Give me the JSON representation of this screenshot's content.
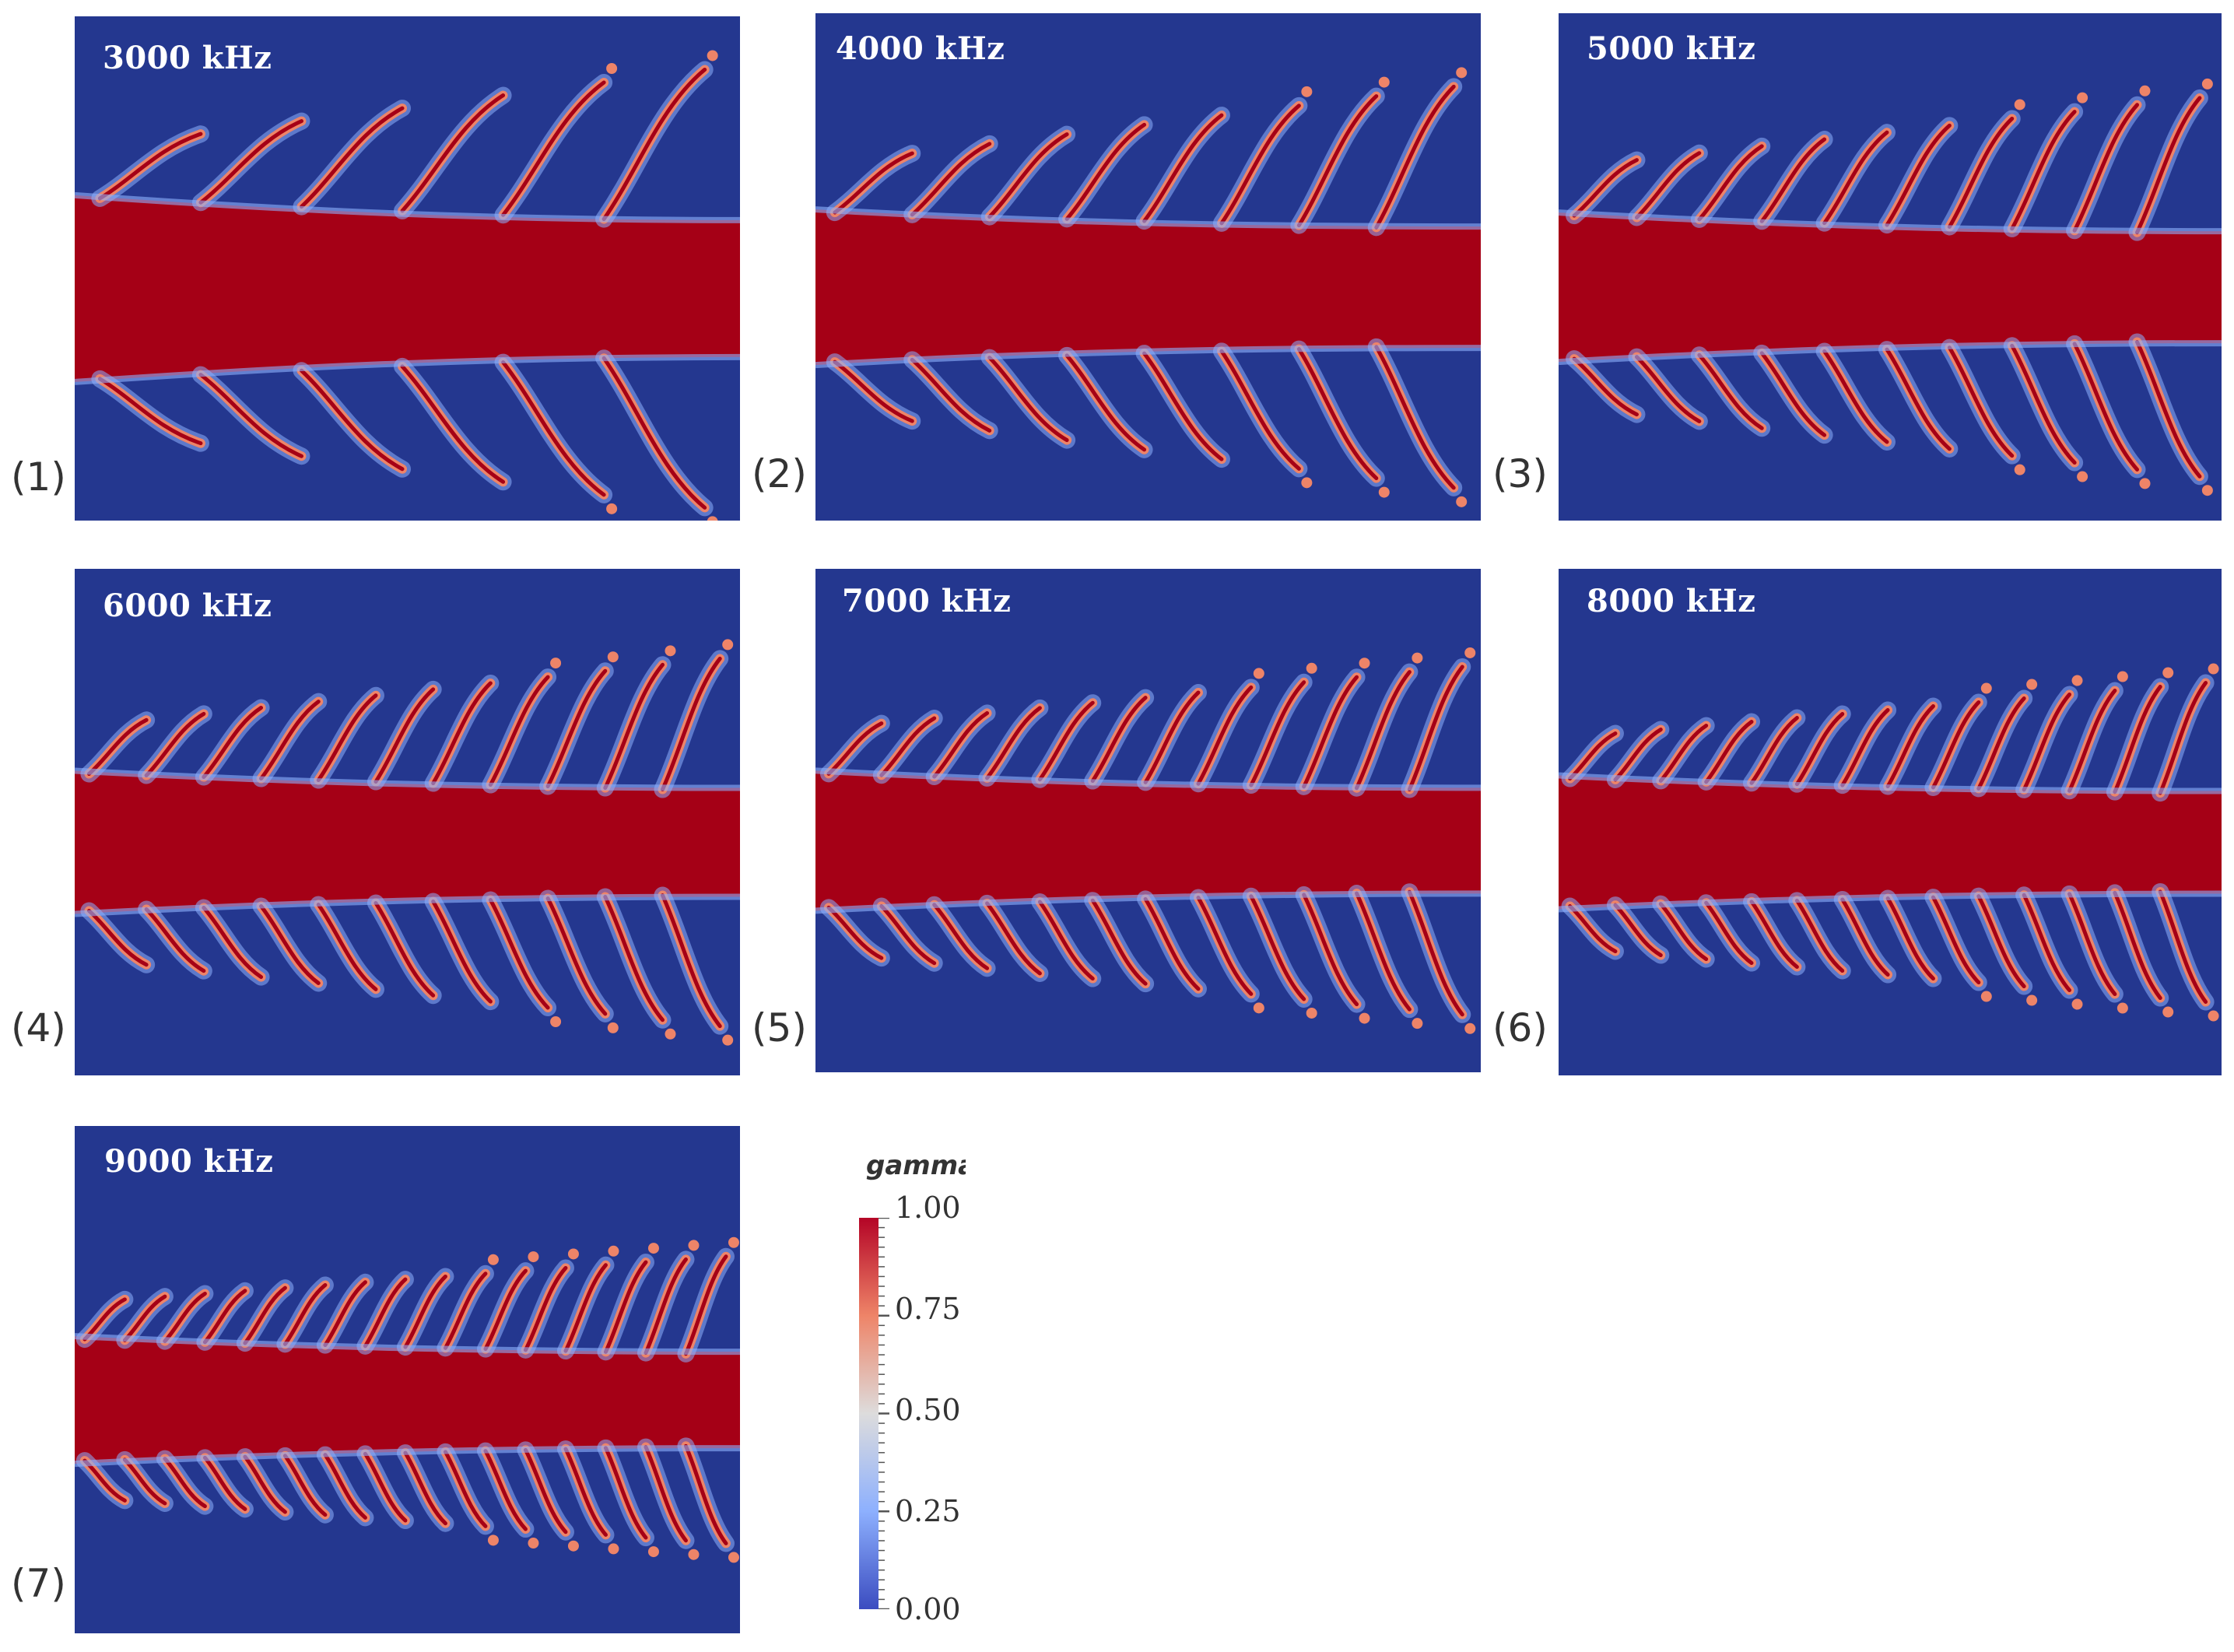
{
  "panels": [
    {
      "id": "(1)",
      "frequency": "3000 kHz"
    },
    {
      "id": "(2)",
      "frequency": "4000 kHz"
    },
    {
      "id": "(3)",
      "frequency": "5000 kHz"
    },
    {
      "id": "(4)",
      "frequency": "6000 kHz"
    },
    {
      "id": "(5)",
      "frequency": "7000 kHz"
    },
    {
      "id": "(6)",
      "frequency": "8000 kHz"
    },
    {
      "id": "(7)",
      "frequency": "9000 kHz"
    }
  ],
  "colorbar": {
    "title": "gamma",
    "ticks": [
      "1.00",
      "0.75",
      "0.50",
      "0.25",
      "0.00"
    ]
  },
  "colors": {
    "background_blue": "#24378f",
    "core_red": "#a50016",
    "interface_orange": "#ee8468",
    "halo_blue": "#8db0fe"
  }
}
